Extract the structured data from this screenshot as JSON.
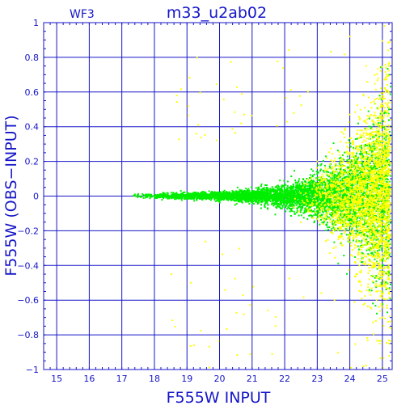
{
  "colors": {
    "axis": "#1515c8",
    "grid": "#1515c8",
    "series_green": "#00ee00",
    "series_yellow": "#ffff00",
    "background": "#ffffff"
  },
  "chart_data": {
    "type": "scatter",
    "title": "m33_u2ab02",
    "corner_label": "WF3",
    "xlabel": "F555W INPUT",
    "ylabel": "F555W (OBS−INPUT)",
    "xlim": [
      14.6,
      25.3
    ],
    "ylim": [
      -1,
      1
    ],
    "x_ticks": [
      15,
      16,
      17,
      18,
      19,
      20,
      21,
      22,
      23,
      24,
      25
    ],
    "y_ticks": [
      1,
      0.8,
      0.6,
      0.4,
      0.2,
      0,
      -0.2,
      -0.4,
      -0.6,
      -0.8,
      -1
    ],
    "y_tick_labels": [
      "1",
      "0.8",
      "0.6",
      "0.4",
      "0.2",
      "0",
      "−0.2",
      "−0.4",
      "−0.6",
      "−0.8",
      "−1"
    ],
    "grid": true,
    "series": [
      {
        "color": "green",
        "description_points": [
          [
            17.4,
            0.01
          ],
          [
            17.6,
            -0.005
          ],
          [
            17.8,
            0.008
          ],
          [
            18.0,
            0.0
          ],
          [
            18.3,
            0.01
          ],
          [
            18.6,
            -0.01
          ],
          [
            19.0,
            0.005
          ],
          [
            19.4,
            0.012
          ],
          [
            19.8,
            -0.008
          ],
          [
            20.2,
            0.01
          ],
          [
            20.6,
            0.005
          ],
          [
            21.0,
            -0.01
          ],
          [
            21.4,
            0.015
          ],
          [
            21.8,
            -0.02
          ],
          [
            22.2,
            0.03
          ],
          [
            22.6,
            -0.03
          ],
          [
            23.0,
            0.06
          ],
          [
            23.3,
            -0.06
          ],
          [
            23.6,
            0.1
          ],
          [
            23.9,
            -0.12
          ],
          [
            24.2,
            0.2
          ],
          [
            24.5,
            -0.25
          ],
          [
            24.8,
            0.35
          ],
          [
            25.0,
            -0.4
          ],
          [
            25.2,
            0.5
          ]
        ]
      },
      {
        "color": "yellow",
        "description_points": [
          [
            22.5,
            -0.15
          ],
          [
            23.0,
            0.2
          ],
          [
            23.5,
            -0.3
          ],
          [
            23.9,
            0.25
          ],
          [
            24.2,
            -0.45
          ],
          [
            24.4,
            0.35
          ],
          [
            24.6,
            -0.55
          ],
          [
            24.8,
            0.45
          ],
          [
            25.0,
            -0.7
          ],
          [
            25.1,
            0.6
          ],
          [
            25.2,
            -0.85
          ],
          [
            24.0,
            0.92
          ],
          [
            24.5,
            0.75
          ]
        ]
      }
    ]
  }
}
